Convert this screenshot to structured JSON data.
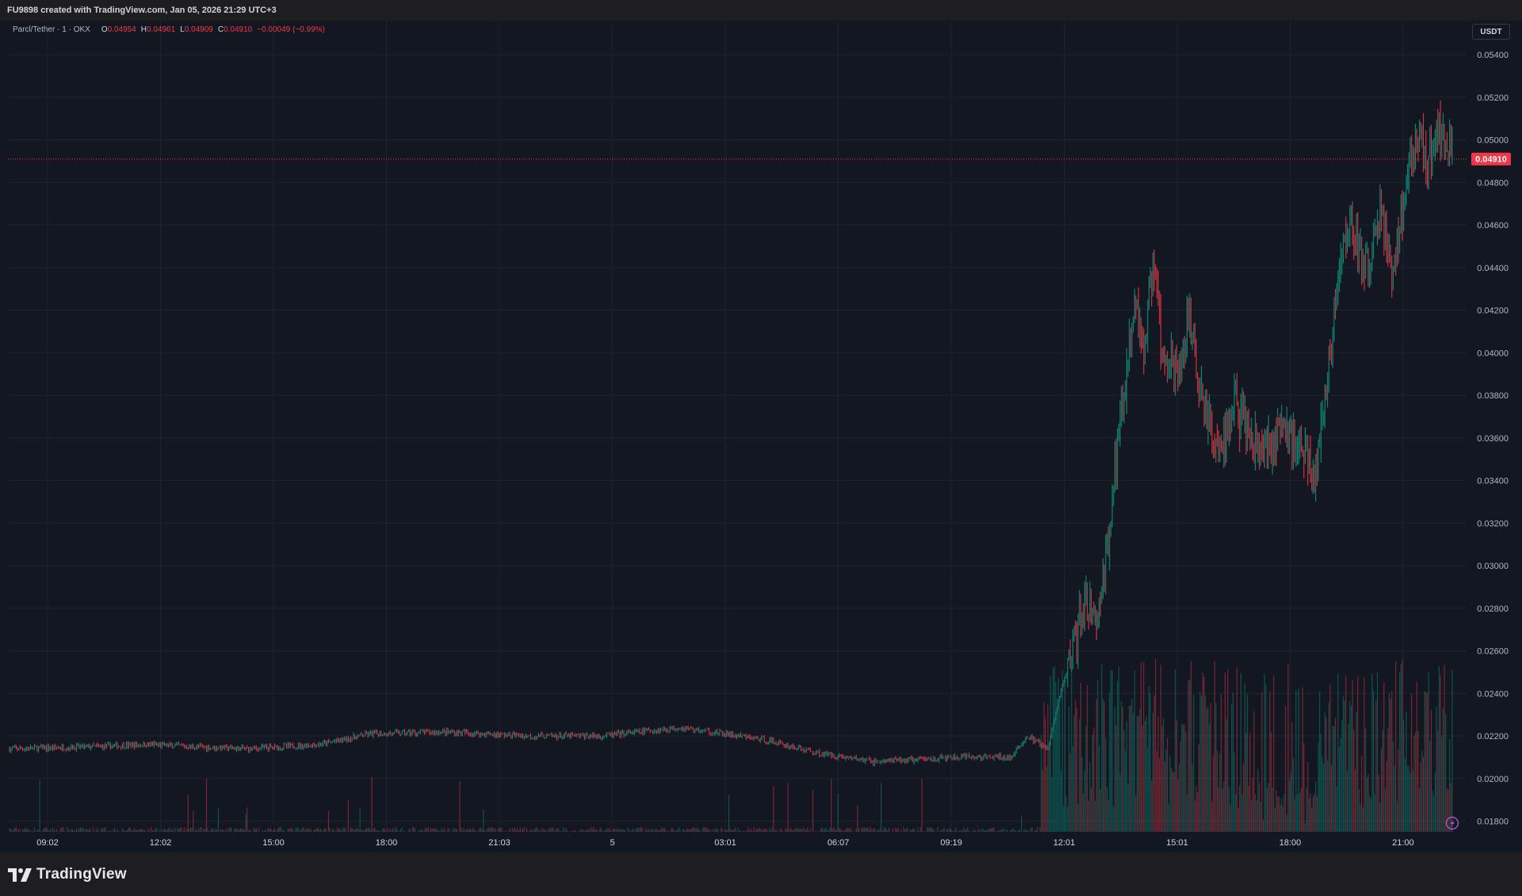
{
  "header": {
    "credit": "FU9898 created with TradingView.com, Jan 05, 2026 21:29 UTC+3"
  },
  "legend": {
    "symbol": "Parcl/Tether · 1 · OKX",
    "open_label": "O",
    "open": "0.04954",
    "high_label": "H",
    "high": "0.04961",
    "low_label": "L",
    "low": "0.04909",
    "close_label": "C",
    "close": "0.04910",
    "change": "−0.00049 (−0.99%)"
  },
  "currency_button": "USDT",
  "footer": {
    "brand": "TradingView",
    "logo_icon": "tradingview-logo-icon"
  },
  "colors": {
    "up": "#089981",
    "down": "#f23645",
    "background": "#131722",
    "grid": "#1f2330"
  },
  "chart_data": {
    "type": "candlestick",
    "title": "Parcl/Tether · 1 · OKX",
    "y_ticks": [
      "0.05400",
      "0.05200",
      "0.05000",
      "0.04800",
      "0.04600",
      "0.04400",
      "0.04200",
      "0.04000",
      "0.03800",
      "0.03600",
      "0.03400",
      "0.03200",
      "0.03000",
      "0.02800",
      "0.02600",
      "0.02400",
      "0.02200",
      "0.02000",
      "0.01800"
    ],
    "ylim": [
      0.0175,
      0.0556
    ],
    "last_price": "0.04910",
    "last_price_value": 0.0491,
    "x_ticks": [
      "09:02",
      "12:02",
      "15:00",
      "18:00",
      "21:03",
      "5",
      "03:01",
      "06:07",
      "09:19",
      "12:01",
      "15:01",
      "18:00",
      "21:00"
    ],
    "price_path": [
      {
        "t": 0.0,
        "p": 0.0214
      },
      {
        "t": 0.06,
        "p": 0.0215
      },
      {
        "t": 0.095,
        "p": 0.0216
      },
      {
        "t": 0.125,
        "p": 0.0215
      },
      {
        "t": 0.165,
        "p": 0.0214
      },
      {
        "t": 0.215,
        "p": 0.0216
      },
      {
        "t": 0.25,
        "p": 0.0221
      },
      {
        "t": 0.3,
        "p": 0.0222
      },
      {
        "t": 0.36,
        "p": 0.022
      },
      {
        "t": 0.41,
        "p": 0.022
      },
      {
        "t": 0.465,
        "p": 0.0224
      },
      {
        "t": 0.525,
        "p": 0.0218
      },
      {
        "t": 0.56,
        "p": 0.0212
      },
      {
        "t": 0.6,
        "p": 0.0208
      },
      {
        "t": 0.66,
        "p": 0.021
      },
      {
        "t": 0.695,
        "p": 0.021
      },
      {
        "t": 0.705,
        "p": 0.022
      },
      {
        "t": 0.72,
        "p": 0.0214
      },
      {
        "t": 0.728,
        "p": 0.024
      },
      {
        "t": 0.735,
        "p": 0.0255
      },
      {
        "t": 0.745,
        "p": 0.0283
      },
      {
        "t": 0.753,
        "p": 0.0276
      },
      {
        "t": 0.76,
        "p": 0.03
      },
      {
        "t": 0.766,
        "p": 0.0345
      },
      {
        "t": 0.773,
        "p": 0.0385
      },
      {
        "t": 0.78,
        "p": 0.042
      },
      {
        "t": 0.786,
        "p": 0.0405
      },
      {
        "t": 0.793,
        "p": 0.044
      },
      {
        "t": 0.8,
        "p": 0.0395
      },
      {
        "t": 0.81,
        "p": 0.039
      },
      {
        "t": 0.818,
        "p": 0.042
      },
      {
        "t": 0.825,
        "p": 0.038
      },
      {
        "t": 0.84,
        "p": 0.035
      },
      {
        "t": 0.848,
        "p": 0.038
      },
      {
        "t": 0.858,
        "p": 0.036
      },
      {
        "t": 0.872,
        "p": 0.0355
      },
      {
        "t": 0.882,
        "p": 0.0365
      },
      {
        "t": 0.895,
        "p": 0.0355
      },
      {
        "t": 0.905,
        "p": 0.0345
      },
      {
        "t": 0.912,
        "p": 0.038
      },
      {
        "t": 0.92,
        "p": 0.043
      },
      {
        "t": 0.928,
        "p": 0.0465
      },
      {
        "t": 0.935,
        "p": 0.0445
      },
      {
        "t": 0.942,
        "p": 0.044
      },
      {
        "t": 0.95,
        "p": 0.0465
      },
      {
        "t": 0.958,
        "p": 0.044
      },
      {
        "t": 0.963,
        "p": 0.0455
      },
      {
        "t": 0.97,
        "p": 0.049
      },
      {
        "t": 0.976,
        "p": 0.0505
      },
      {
        "t": 0.983,
        "p": 0.049
      },
      {
        "t": 0.99,
        "p": 0.0505
      },
      {
        "t": 1.0,
        "p": 0.0491
      }
    ]
  }
}
